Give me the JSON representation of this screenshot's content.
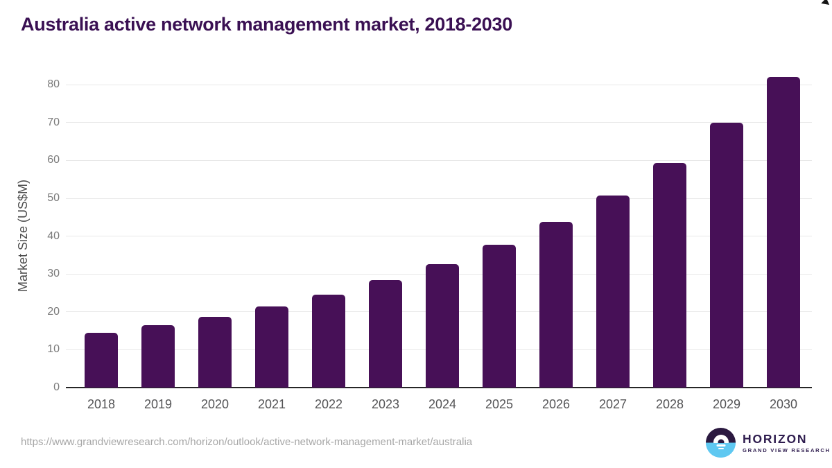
{
  "page": {
    "title": "Australia active network management market, 2018-2030"
  },
  "chart_data": {
    "type": "bar",
    "title": "Australia active network management market, 2018-2030",
    "categories": [
      "2018",
      "2019",
      "2020",
      "2021",
      "2022",
      "2023",
      "2024",
      "2025",
      "2026",
      "2027",
      "2028",
      "2029",
      "2030"
    ],
    "values": [
      14.4,
      16.4,
      18.6,
      21.4,
      24.5,
      28.4,
      32.6,
      37.7,
      43.7,
      50.8,
      59.3,
      69.9,
      82.0
    ],
    "xlabel": "",
    "ylabel": "Market Size (US$M)",
    "ylim": [
      0,
      84
    ],
    "yticks": [
      0,
      10,
      20,
      30,
      40,
      50,
      60,
      70,
      80
    ],
    "grid": "horizontal-light",
    "legend": "none",
    "bar_color": "#471057"
  },
  "colors": {
    "title": "#3a1053",
    "bar": "#471057",
    "gridline": "#e8e8e8",
    "axis_line": "#262626",
    "logo_purple": "#2b1940",
    "logo_blue": "#5fc8f1"
  },
  "footer": {
    "source_url": "https://www.grandviewresearch.com/horizon/outlook/active-network-management-market/australia",
    "logo": {
      "brand": "HORIZON",
      "subtitle": "GRAND VIEW RESEARCH",
      "icon": "horizon-sun-circle-icon"
    }
  }
}
